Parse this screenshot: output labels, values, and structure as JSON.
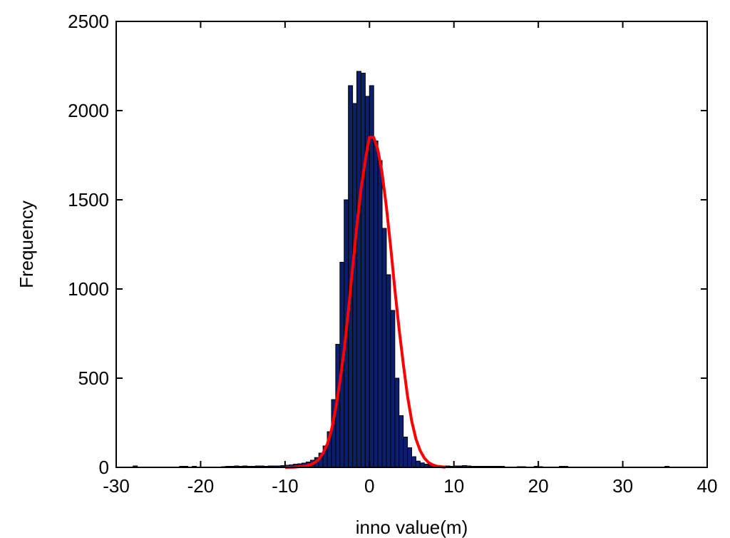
{
  "chart_data": {
    "type": "bar",
    "title": "",
    "xlabel": "inno value(m)",
    "ylabel": "Frequency",
    "xlim": [
      -30,
      40
    ],
    "ylim": [
      0,
      2500
    ],
    "xticks": [
      "-30",
      "-20",
      "-10",
      "0",
      "10",
      "20",
      "30",
      "40"
    ],
    "yticks": [
      "0",
      "500",
      "1000",
      "1500",
      "2000",
      "2500"
    ],
    "grid": false,
    "legend": "none",
    "bin_width": 0.5,
    "colors": {
      "bars": "#0a1f6e",
      "bar_edge": "#000000",
      "fit": "#ff0000"
    },
    "series": [
      {
        "type": "bar",
        "x": [
          -27.75,
          -22.25,
          -21.75,
          -20.75,
          -17.25,
          -16.75,
          -16.25,
          -15.75,
          -15.25,
          -14.75,
          -14.25,
          -13.75,
          -13.25,
          -12.75,
          -12.25,
          -11.75,
          -11.25,
          -10.75,
          -10.25,
          -9.75,
          -9.25,
          -8.75,
          -8.25,
          -7.75,
          -7.25,
          -6.75,
          -6.25,
          -5.75,
          -5.25,
          -4.75,
          -4.25,
          -3.75,
          -3.25,
          -2.75,
          -2.25,
          -1.75,
          -1.25,
          -0.75,
          -0.25,
          0.25,
          0.75,
          1.25,
          1.75,
          2.25,
          2.75,
          3.25,
          3.75,
          4.25,
          4.75,
          5.25,
          5.75,
          6.25,
          6.75,
          7.25,
          7.75,
          8.25,
          8.75,
          9.25,
          9.75,
          10.25,
          10.75,
          11.25,
          11.75,
          12.25,
          12.75,
          13.25,
          13.75,
          14.25,
          14.75,
          15.25,
          15.75,
          17.75,
          18.25,
          19.75,
          20.25,
          22.75,
          23.25,
          35.25
        ],
        "values": [
          8,
          6,
          6,
          6,
          4,
          6,
          6,
          8,
          6,
          8,
          6,
          6,
          8,
          8,
          6,
          8,
          8,
          8,
          10,
          12,
          14,
          18,
          20,
          24,
          30,
          40,
          55,
          80,
          120,
          200,
          380,
          690,
          1150,
          1500,
          2140,
          2040,
          2220,
          2210,
          2080,
          2140,
          1830,
          1720,
          1340,
          1080,
          880,
          500,
          290,
          170,
          110,
          60,
          35,
          25,
          18,
          14,
          12,
          10,
          8,
          8,
          6,
          8,
          8,
          10,
          8,
          6,
          6,
          6,
          6,
          6,
          6,
          6,
          6,
          4,
          4,
          6,
          4,
          6,
          6,
          6
        ]
      },
      {
        "type": "line",
        "x": [
          -10,
          -9,
          -8,
          -7.5,
          -7,
          -6.5,
          -6,
          -5.5,
          -5,
          -4.5,
          -4,
          -3.5,
          -3,
          -2.5,
          -2,
          -1.5,
          -1,
          -0.5,
          -0.25,
          0,
          0.5,
          1,
          1.5,
          2,
          2.5,
          3,
          3.5,
          4,
          4.5,
          5,
          5.5,
          6,
          6.5,
          7,
          7.5,
          8,
          9
        ],
        "values": [
          0,
          1,
          5,
          9,
          15,
          27,
          45,
          80,
          130,
          210,
          330,
          480,
          660,
          880,
          1120,
          1350,
          1560,
          1720,
          1790,
          1850,
          1850,
          1780,
          1650,
          1460,
          1240,
          1000,
          780,
          580,
          400,
          260,
          160,
          95,
          52,
          27,
          14,
          6,
          1
        ]
      }
    ]
  }
}
